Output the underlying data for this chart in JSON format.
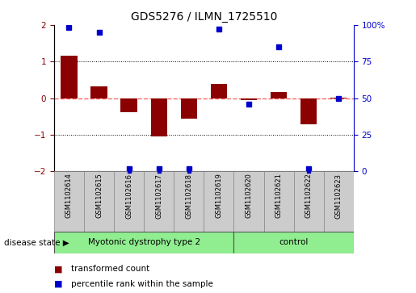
{
  "title": "GDS5276 / ILMN_1725510",
  "samples": [
    "GSM1102614",
    "GSM1102615",
    "GSM1102616",
    "GSM1102617",
    "GSM1102618",
    "GSM1102619",
    "GSM1102620",
    "GSM1102621",
    "GSM1102622",
    "GSM1102623"
  ],
  "red_bars": [
    1.15,
    0.32,
    -0.38,
    -1.05,
    -0.55,
    0.38,
    -0.05,
    0.17,
    -0.72,
    0.02
  ],
  "blue_dots": [
    98,
    95,
    2,
    2,
    2,
    97,
    46,
    85,
    2,
    50
  ],
  "groups": [
    {
      "label": "Myotonic dystrophy type 2",
      "start": 0,
      "end": 6,
      "color": "#90EE90"
    },
    {
      "label": "control",
      "start": 6,
      "end": 10,
      "color": "#90EE90"
    }
  ],
  "ylim_left": [
    -2,
    2
  ],
  "ylim_right": [
    0,
    100
  ],
  "yticks_left": [
    -2,
    -1,
    0,
    1,
    2
  ],
  "yticks_right": [
    0,
    25,
    50,
    75,
    100
  ],
  "ytick_labels_right": [
    "0",
    "25",
    "50",
    "75",
    "100%"
  ],
  "red_color": "#8B0000",
  "blue_color": "#0000CC",
  "zero_line_color": "#FF6666",
  "legend_red_label": "transformed count",
  "legend_blue_label": "percentile rank within the sample",
  "disease_state_label": "disease state",
  "bar_width": 0.55,
  "group_boundary": 6
}
